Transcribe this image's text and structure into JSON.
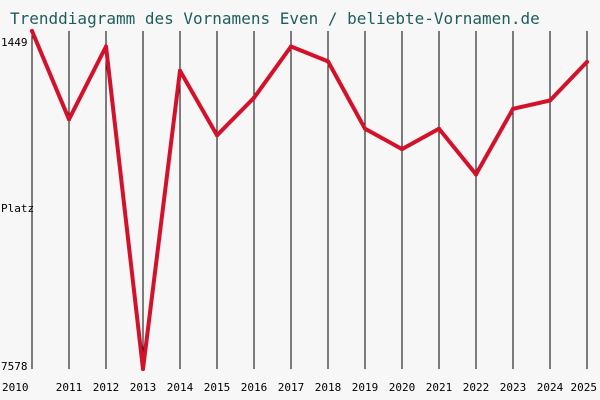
{
  "chart_data": {
    "type": "line",
    "title": "Trenddiagramm des Vornamens Even / beliebte-Vornamen.de",
    "ylabel": "Platz",
    "y_tick_labels": [
      "1449",
      "7578"
    ],
    "y_axis_inverted": true,
    "ylim": [
      1449,
      7578
    ],
    "x": [
      2010,
      2011,
      2012,
      2013,
      2014,
      2015,
      2016,
      2017,
      2018,
      2019,
      2020,
      2021,
      2022,
      2023,
      2024,
      2025
    ],
    "values": [
      1449,
      3050,
      1730,
      7578,
      2170,
      3340,
      2660,
      1730,
      2000,
      3220,
      3590,
      3220,
      4050,
      2860,
      2710,
      2010
    ],
    "grid": "vertical",
    "color": "#d4112a"
  }
}
